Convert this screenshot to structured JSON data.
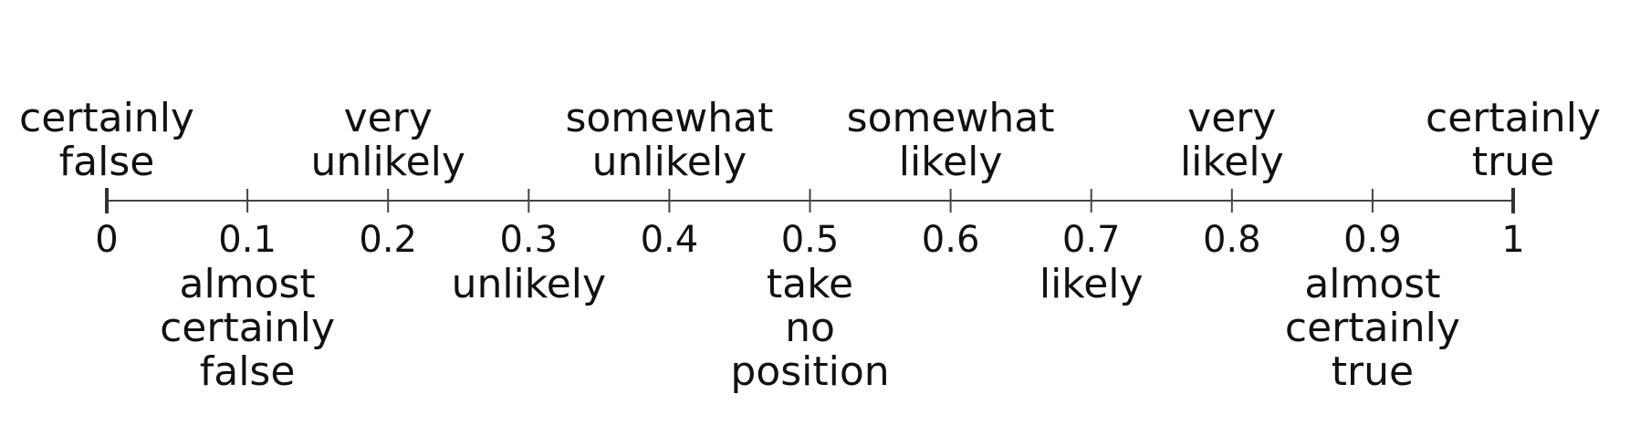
{
  "scale": {
    "ticks": [
      "0",
      "0.1",
      "0.2",
      "0.3",
      "0.4",
      "0.5",
      "0.6",
      "0.7",
      "0.8",
      "0.9",
      "1"
    ],
    "labels_above": [
      {
        "value": 0.0,
        "lines": [
          "certainly",
          "false"
        ]
      },
      {
        "value": 0.2,
        "lines": [
          "very",
          "unlikely"
        ]
      },
      {
        "value": 0.4,
        "lines": [
          "somewhat",
          "unlikely"
        ]
      },
      {
        "value": 0.6,
        "lines": [
          "somewhat",
          "likely"
        ]
      },
      {
        "value": 0.8,
        "lines": [
          "very",
          "likely"
        ]
      },
      {
        "value": 1.0,
        "lines": [
          "certainly",
          "true"
        ]
      }
    ],
    "labels_below": [
      {
        "value": 0.1,
        "lines": [
          "almost",
          "certainly",
          "false"
        ]
      },
      {
        "value": 0.3,
        "lines": [
          "unlikely"
        ]
      },
      {
        "value": 0.5,
        "lines": [
          "take",
          "no",
          "position"
        ]
      },
      {
        "value": 0.7,
        "lines": [
          "likely"
        ]
      },
      {
        "value": 0.9,
        "lines": [
          "almost",
          "certainly",
          "true"
        ]
      }
    ]
  }
}
